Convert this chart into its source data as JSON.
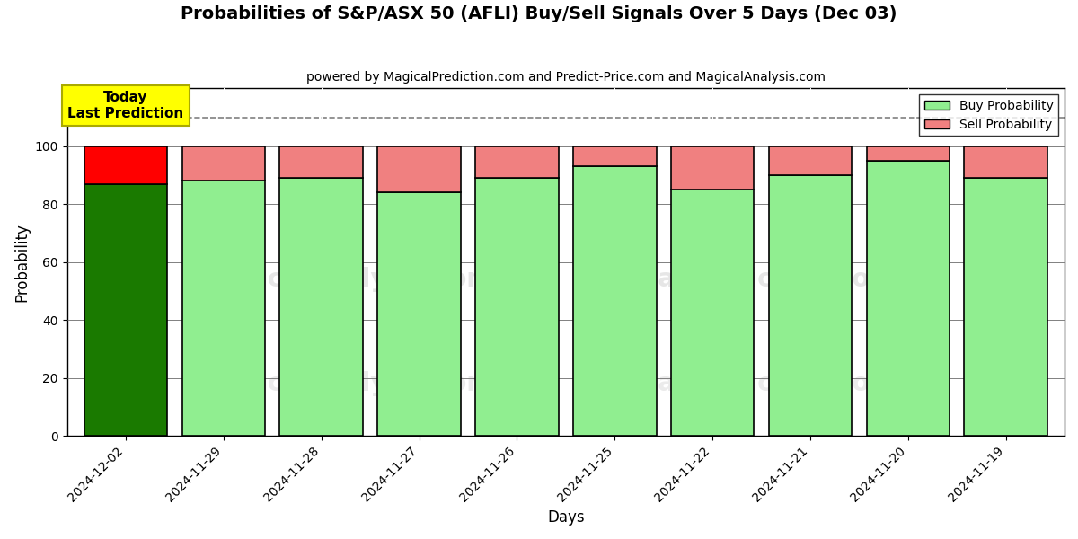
{
  "title": "Probabilities of S&P/ASX 50 (AFLI) Buy/Sell Signals Over 5 Days (Dec 03)",
  "subtitle": "powered by MagicalPrediction.com and Predict-Price.com and MagicalAnalysis.com",
  "xlabel": "Days",
  "ylabel": "Probability",
  "dates": [
    "2024-12-02",
    "2024-11-29",
    "2024-11-28",
    "2024-11-27",
    "2024-11-26",
    "2024-11-25",
    "2024-11-22",
    "2024-11-21",
    "2024-11-20",
    "2024-11-19"
  ],
  "buy_probs": [
    87,
    88,
    89,
    84,
    89,
    93,
    85,
    90,
    95,
    89
  ],
  "sell_probs": [
    13,
    12,
    11,
    16,
    11,
    7,
    15,
    10,
    5,
    11
  ],
  "today_buy_color": "#1a7a00",
  "today_sell_color": "#ff0000",
  "other_buy_color": "#90EE90",
  "other_sell_color": "#F08080",
  "today_label_bg": "#ffff00",
  "today_annotation": "Today\nLast Prediction",
  "ylim": [
    0,
    120
  ],
  "dashed_line_y": 110,
  "legend_buy_label": "Buy Probability",
  "legend_sell_label": "Sell Probability",
  "watermark1_text": "MagicalAnalysis.com",
  "watermark2_text": "MagicalPrediction.com",
  "bar_width": 0.85,
  "bar_edgecolor": "#000000",
  "yticks": [
    0,
    20,
    40,
    60,
    80,
    100
  ],
  "title_fontsize": 14,
  "subtitle_fontsize": 10,
  "xlabel_fontsize": 12,
  "ylabel_fontsize": 12,
  "tick_fontsize": 10,
  "legend_fontsize": 10,
  "annotation_fontsize": 11
}
